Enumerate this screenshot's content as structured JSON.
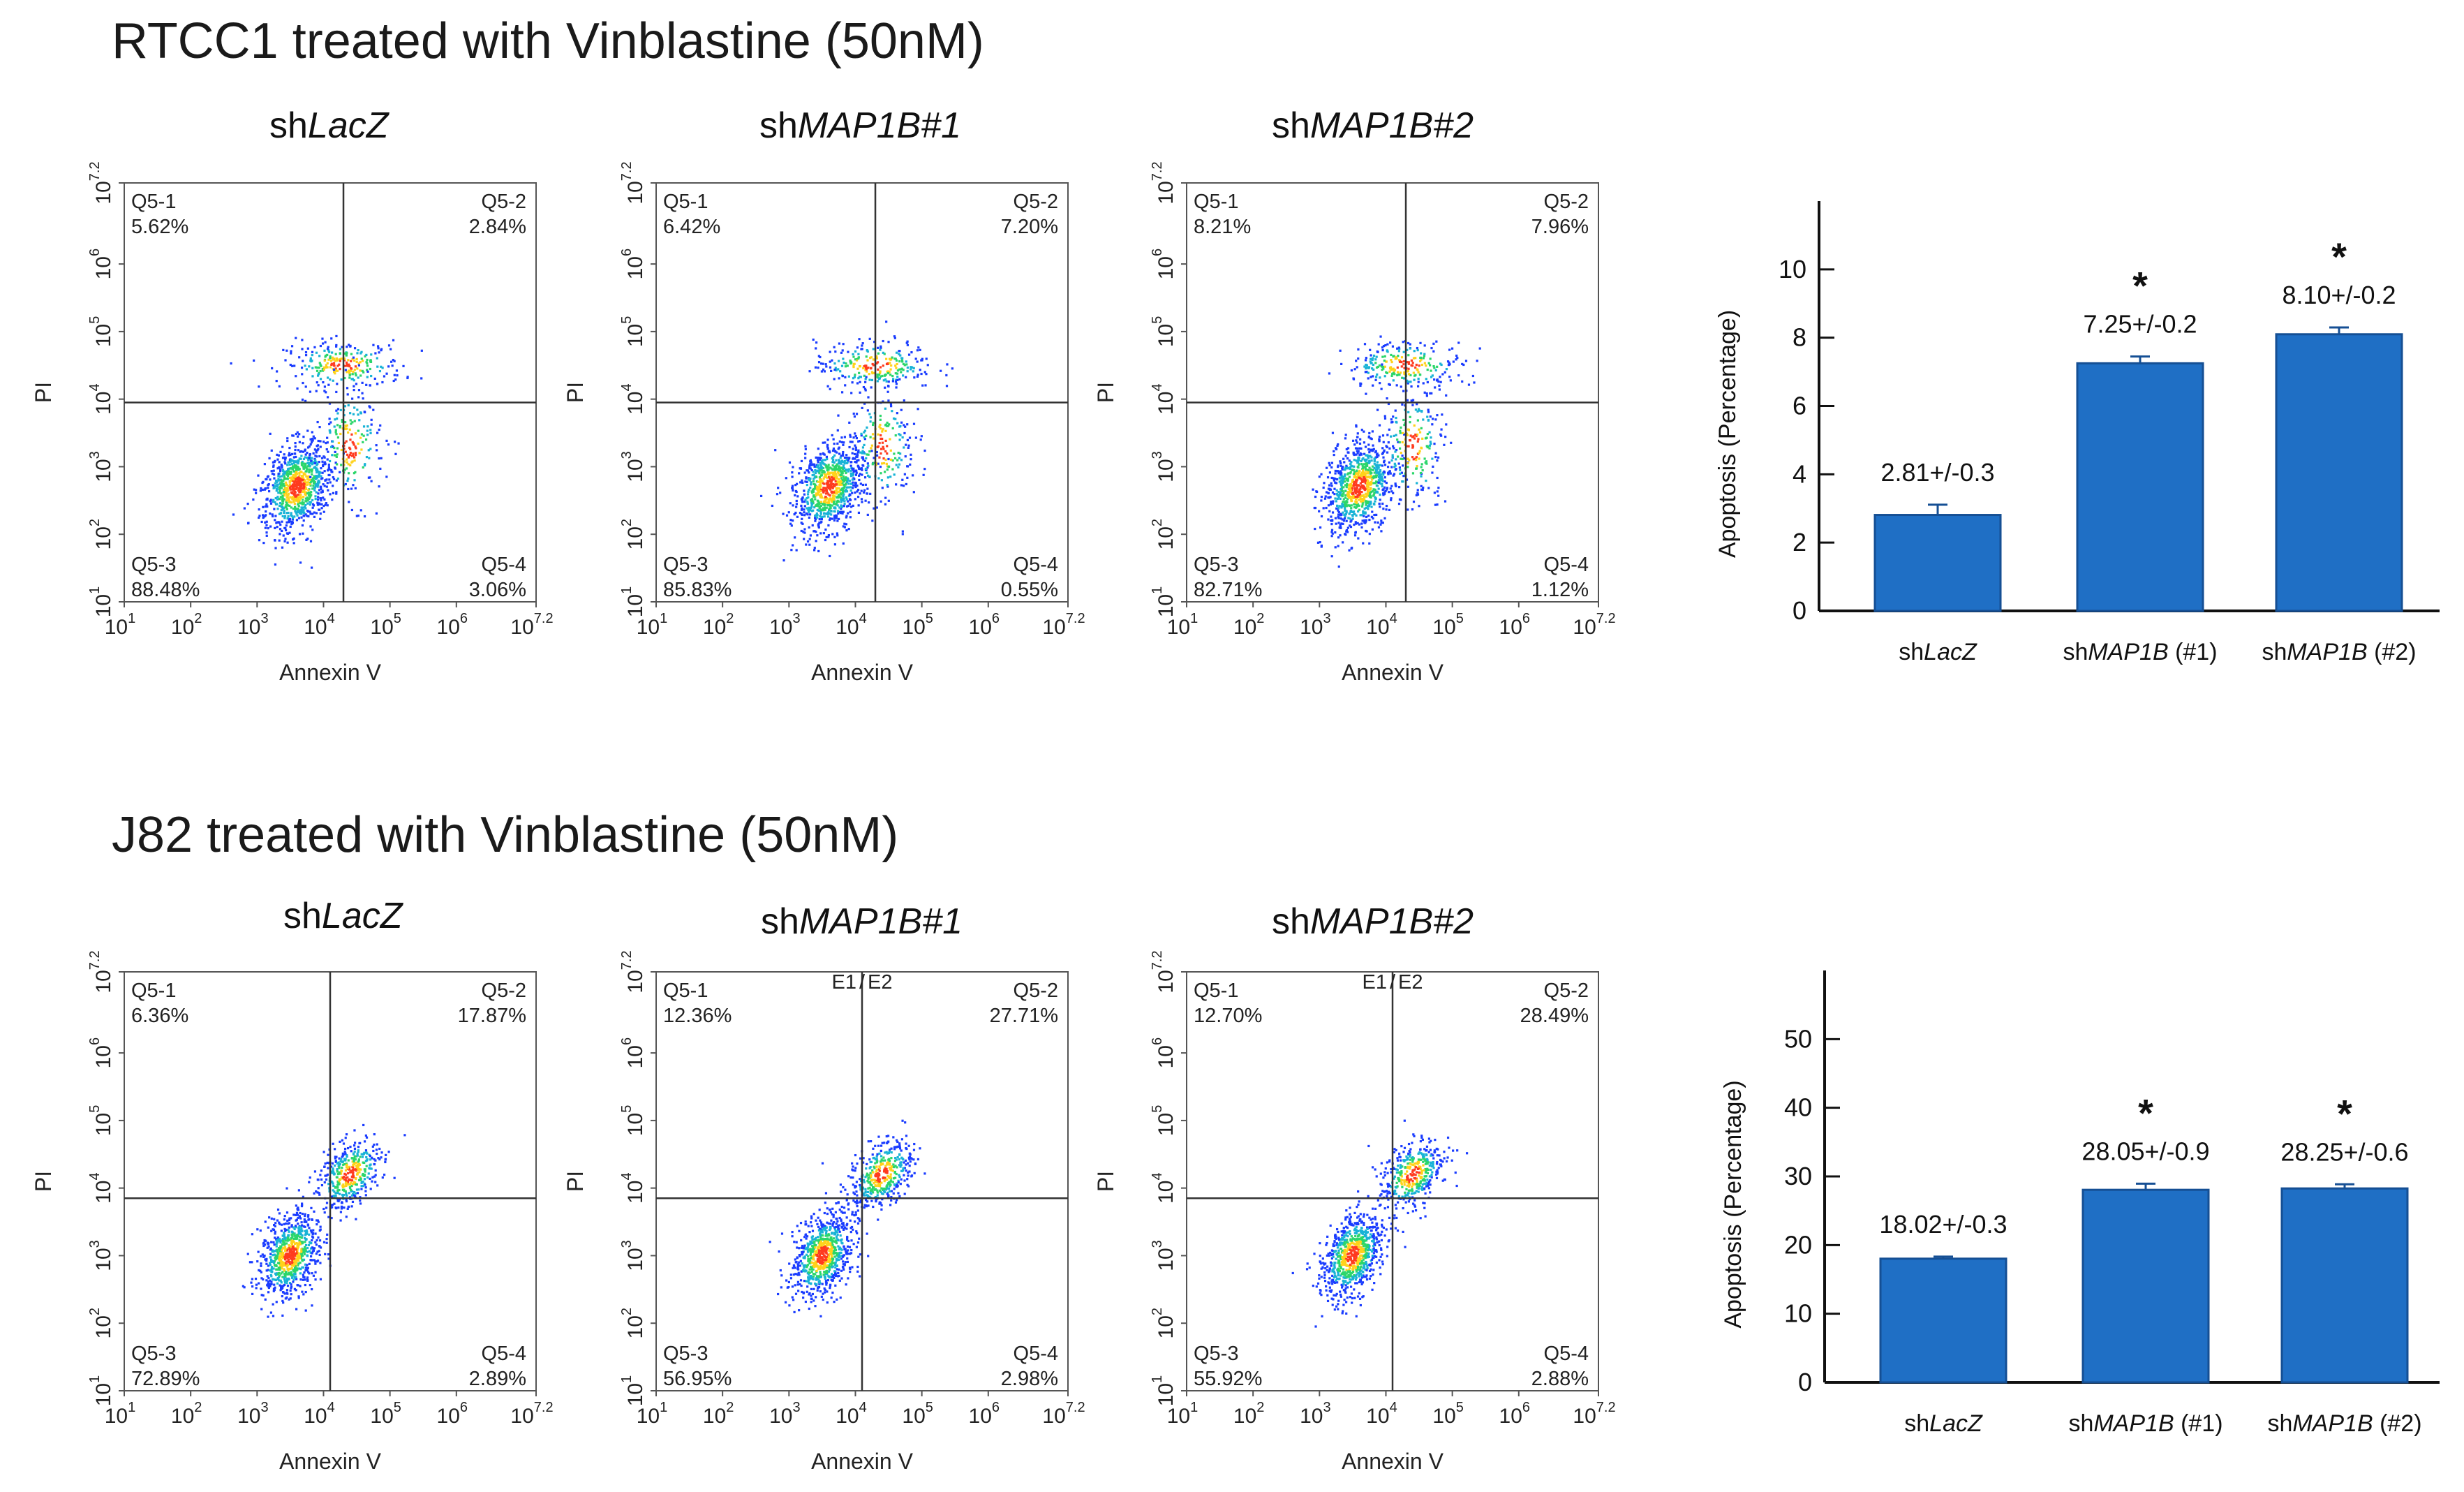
{
  "rows": [
    {
      "title": "RTCC1 treated with Vinblastine (50nM)",
      "plots": [
        {
          "title_prefix": "sh",
          "title_italic": "LacZ",
          "q1_label": "Q5-1",
          "q1": "5.62%",
          "q2_label": "Q5-2",
          "q2": "2.84%",
          "q3_label": "Q5-3",
          "q3": "88.48%",
          "q4_label": "Q5-4",
          "q4": "3.06%",
          "gate_x": 4.3,
          "gate_y": 3.95,
          "has_e_label": false
        },
        {
          "title_prefix": "sh",
          "title_italic": "MAP1B#1",
          "q1_label": "Q5-1",
          "q1": "6.42%",
          "q2_label": "Q5-2",
          "q2": "7.20%",
          "q3_label": "Q5-3",
          "q3": "85.83%",
          "q4_label": "Q5-4",
          "q4": "0.55%",
          "gate_x": 4.3,
          "gate_y": 3.95,
          "has_e_label": false
        },
        {
          "title_prefix": "sh",
          "title_italic": "MAP1B#2",
          "q1_label": "Q5-1",
          "q1": "8.21%",
          "q2_label": "Q5-2",
          "q2": "7.96%",
          "q3_label": "Q5-3",
          "q3": "82.71%",
          "q4_label": "Q5-4",
          "q4": "1.12%",
          "gate_x": 4.3,
          "gate_y": 3.95,
          "has_e_label": false
        }
      ]
    },
    {
      "title": "J82 treated with Vinblastine (50nM)",
      "plots": [
        {
          "title_prefix": "sh",
          "title_italic": "LacZ",
          "q1_label": "Q5-1",
          "q1": "6.36%",
          "q2_label": "Q5-2",
          "q2": "17.87%",
          "q3_label": "Q5-3",
          "q3": "72.89%",
          "q4_label": "Q5-4",
          "q4": "2.89%",
          "gate_x": 4.1,
          "gate_y": 3.85,
          "has_e_label": false
        },
        {
          "title_prefix": "sh",
          "title_italic": "MAP1B#1",
          "q1_label": "Q5-1",
          "q1": "12.36%",
          "q2_label": "Q5-2",
          "q2": "27.71%",
          "q3_label": "Q5-3",
          "q3": "56.95%",
          "q4_label": "Q5-4",
          "q4": "2.98%",
          "gate_x": 4.1,
          "gate_y": 3.85,
          "has_e_label": true
        },
        {
          "title_prefix": "sh",
          "title_italic": "MAP1B#2",
          "q1_label": "Q5-1",
          "q1": "12.70%",
          "q2_label": "Q5-2",
          "q2": "28.49%",
          "q3_label": "Q5-3",
          "q3": "55.92%",
          "q4_label": "Q5-4",
          "q4": "2.88%",
          "gate_x": 4.1,
          "gate_y": 3.85,
          "has_e_label": true
        }
      ]
    }
  ],
  "flow_axes": {
    "xlabel": "Annexin V",
    "ylabel": "PI",
    "ticks": [
      "1",
      "2",
      "3",
      "4",
      "5",
      "6",
      "7.2"
    ],
    "tick_base": "10",
    "e1_label": "E1",
    "e_sep": "/",
    "e2_label": "E2",
    "e1_color": "#e53935",
    "e2_color": "#2e9a3e"
  },
  "chart_data": [
    {
      "type": "bar",
      "title": "RTCC1 treated with Vinblastine (50nM)",
      "ylabel": "Apoptosis (Percentage)",
      "ylim": [
        0,
        12
      ],
      "yticks": [
        0,
        2,
        4,
        6,
        8,
        10
      ],
      "categories": [
        {
          "prefix": "sh",
          "italic": "LacZ",
          "suffix": ""
        },
        {
          "prefix": "sh",
          "italic": "MAP1B",
          "suffix": " (#1)"
        },
        {
          "prefix": "sh",
          "italic": "MAP1B",
          "suffix": " (#2)"
        }
      ],
      "values": [
        2.81,
        7.25,
        8.1
      ],
      "errors": [
        0.3,
        0.2,
        0.2
      ],
      "value_labels": [
        "2.81+/-0.3",
        "7.25+/-0.2",
        "8.10+/-0.2"
      ],
      "significance": [
        "",
        "*",
        "*"
      ],
      "bar_color": "#1f6fc5"
    },
    {
      "type": "bar",
      "title": "J82 treated with Vinblastine (50nM)",
      "ylabel": "Apoptosis (Percentage)",
      "ylim": [
        0,
        60
      ],
      "yticks": [
        0,
        10,
        20,
        30,
        40,
        50
      ],
      "categories": [
        {
          "prefix": "sh",
          "italic": "LacZ",
          "suffix": ""
        },
        {
          "prefix": "sh",
          "italic": "MAP1B",
          "suffix": " (#1)"
        },
        {
          "prefix": "sh",
          "italic": "MAP1B",
          "suffix": " (#2)"
        }
      ],
      "values": [
        18.02,
        28.05,
        28.25
      ],
      "errors": [
        0.3,
        0.9,
        0.6
      ],
      "value_labels": [
        "18.02+/-0.3",
        "28.05+/-0.9",
        "28.25+/-0.6"
      ],
      "significance": [
        "",
        "*",
        "*"
      ],
      "bar_color": "#1f6fc5"
    }
  ]
}
